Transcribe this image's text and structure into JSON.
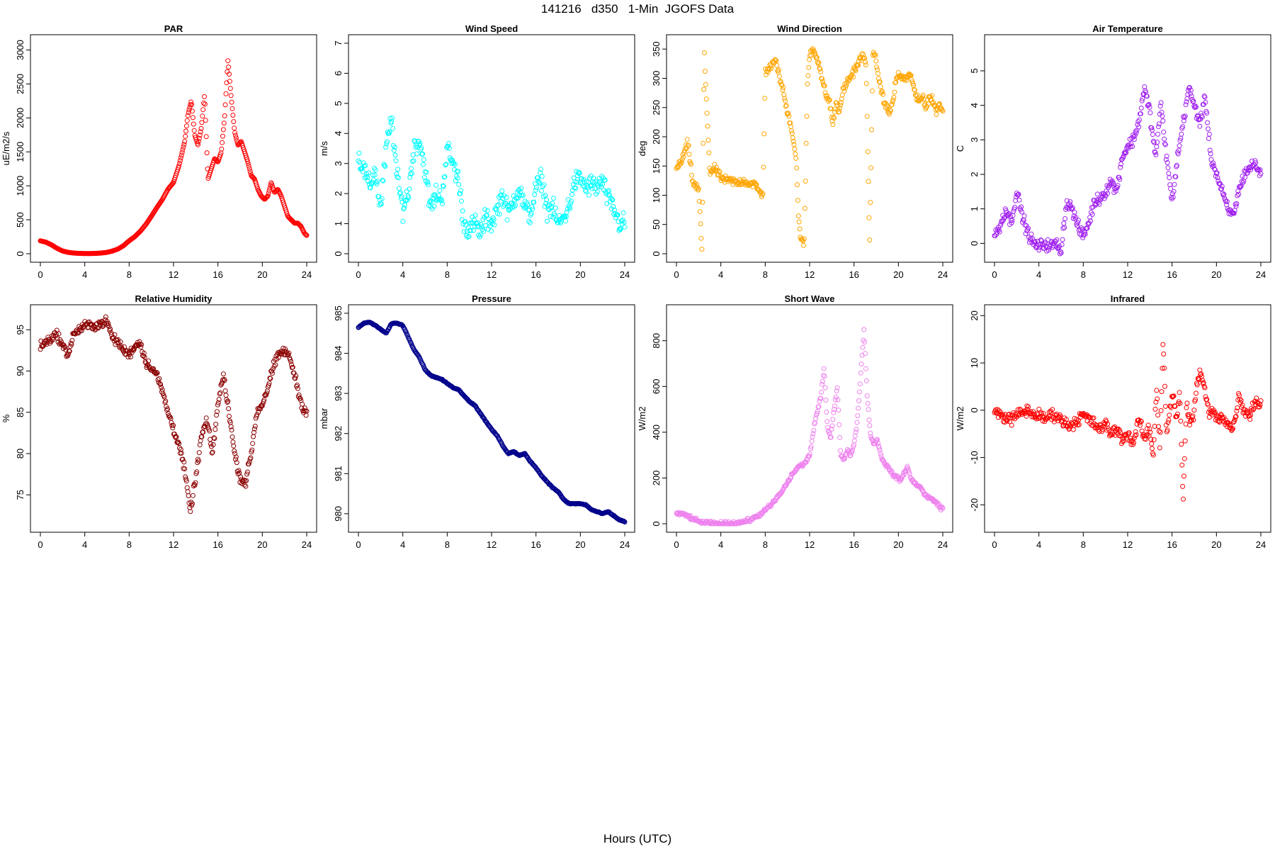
{
  "page": {
    "title": "141216   d350   1-Min  JGOFS Data",
    "xlabel": "Hours (UTC)"
  },
  "chart_data": [
    {
      "type": "scatter",
      "title": "PAR",
      "ylabel": "uE/m2/s",
      "xlabel": "",
      "color": "#ff0000",
      "xlim": [
        0,
        24
      ],
      "ylim": [
        0,
        3100
      ],
      "xticks": [
        0,
        4,
        8,
        12,
        16,
        20,
        24
      ],
      "yticks": [
        0,
        500,
        1000,
        1500,
        2000,
        2500,
        3000
      ],
      "jitter": 0.04,
      "x": [
        0,
        0.5,
        1,
        1.5,
        2,
        2.5,
        3,
        3.5,
        4,
        4.5,
        5,
        5.5,
        6,
        6.5,
        7,
        7.5,
        8,
        8.5,
        9,
        9.5,
        10,
        10.5,
        11,
        11.5,
        12,
        12.5,
        13,
        13.3,
        13.6,
        13.9,
        14.2,
        14.5,
        14.8,
        15.1,
        15.4,
        15.7,
        16,
        16.3,
        16.6,
        16.9,
        17.2,
        17.5,
        17.8,
        18.1,
        18.4,
        18.7,
        19,
        19.3,
        19.6,
        19.9,
        20.2,
        20.5,
        20.8,
        21.1,
        21.4,
        21.7,
        22,
        22.3,
        22.6,
        22.9,
        23.2,
        23.5,
        23.8,
        24
      ],
      "y": [
        190,
        170,
        130,
        80,
        40,
        20,
        10,
        5,
        3,
        3,
        5,
        10,
        20,
        40,
        70,
        120,
        190,
        250,
        330,
        430,
        550,
        680,
        800,
        950,
        1050,
        1300,
        1650,
        2050,
        2250,
        1750,
        1600,
        1850,
        2350,
        1100,
        1250,
        1400,
        1350,
        1500,
        2000,
        2850,
        2300,
        1800,
        1600,
        1650,
        1500,
        1350,
        1150,
        1100,
        950,
        850,
        800,
        850,
        1050,
        900,
        950,
        850,
        700,
        550,
        500,
        450,
        450,
        400,
        300,
        270
      ]
    },
    {
      "type": "scatter",
      "title": "Wind Speed",
      "ylabel": "m/s",
      "xlabel": "",
      "color": "#00ffff",
      "xlim": [
        0,
        24
      ],
      "ylim": [
        0,
        7
      ],
      "xticks": [
        0,
        4,
        8,
        12,
        16,
        20,
        24
      ],
      "yticks": [
        0,
        1,
        2,
        3,
        4,
        5,
        6,
        7
      ],
      "jitter": 0.5,
      "x": [
        0,
        0.5,
        1,
        1.5,
        2,
        2.5,
        3,
        3.5,
        4,
        4.5,
        5,
        5.5,
        6,
        6.5,
        7,
        7.5,
        8,
        8.5,
        9,
        9.5,
        10,
        10.5,
        11,
        11.5,
        12,
        12.5,
        13,
        13.5,
        14,
        14.5,
        15,
        15.5,
        16,
        16.5,
        17,
        17.5,
        18,
        18.5,
        19,
        19.5,
        20,
        20.5,
        21,
        21.5,
        22,
        22.5,
        23,
        23.5,
        24
      ],
      "y": [
        3.2,
        2.8,
        2.2,
        2.8,
        1.5,
        3.5,
        4.5,
        2.5,
        1.5,
        2.0,
        3.5,
        3.8,
        2.8,
        1.5,
        2.0,
        1.8,
        3.5,
        3.0,
        2.5,
        1.0,
        0.8,
        1.0,
        0.7,
        1.2,
        1.0,
        1.5,
        2.0,
        1.3,
        1.8,
        2.2,
        1.5,
        1.3,
        2.2,
        2.5,
        1.5,
        1.5,
        1.0,
        1.2,
        1.6,
        2.4,
        2.5,
        2.2,
        2.3,
        2.2,
        2.4,
        1.8,
        1.5,
        1.0,
        1.0
      ]
    },
    {
      "type": "scatter",
      "title": "Wind Direction",
      "ylabel": "deg",
      "xlabel": "",
      "color": "#ffa500",
      "xlim": [
        0,
        24
      ],
      "ylim": [
        0,
        360
      ],
      "xticks": [
        0,
        4,
        8,
        12,
        16,
        20,
        24
      ],
      "yticks": [
        0,
        50,
        100,
        150,
        200,
        250,
        300,
        350
      ],
      "jitter": 10,
      "x": [
        0,
        0.5,
        1,
        1.5,
        2,
        2.3,
        2.5,
        3,
        3.5,
        4,
        4.5,
        5,
        5.5,
        6,
        6.5,
        7,
        7.5,
        7.8,
        8,
        8.5,
        9,
        9.3,
        9.6,
        9.9,
        10.2,
        10.5,
        10.8,
        11,
        11.2,
        11.5,
        11.8,
        12,
        12.3,
        12.6,
        12.9,
        13.2,
        13.5,
        13.8,
        14.1,
        14.4,
        14.7,
        15,
        15.3,
        15.6,
        15.9,
        16.2,
        16.5,
        16.8,
        17.1,
        17.4,
        17.7,
        18,
        18.3,
        18.6,
        18.9,
        19.2,
        19.5,
        19.8,
        20.1,
        20.4,
        20.7,
        21,
        21.3,
        21.6,
        21.9,
        22.2,
        22.5,
        22.8,
        23.1,
        23.4,
        23.7,
        24
      ],
      "y": [
        145,
        160,
        190,
        120,
        110,
        5,
        345,
        140,
        145,
        130,
        125,
        125,
        120,
        125,
        120,
        120,
        105,
        100,
        310,
        320,
        330,
        300,
        280,
        250,
        230,
        200,
        160,
        60,
        30,
        10,
        290,
        340,
        350,
        340,
        320,
        290,
        270,
        260,
        220,
        260,
        240,
        280,
        290,
        300,
        310,
        320,
        330,
        340,
        320,
        15,
        340,
        330,
        290,
        270,
        250,
        240,
        260,
        300,
        305,
        300,
        300,
        305,
        295,
        265,
        260,
        270,
        250,
        270,
        260,
        245,
        255,
        245
      ]
    },
    {
      "type": "scatter",
      "title": "Air Temperature",
      "ylabel": "C",
      "xlabel": "",
      "color": "#a020f0",
      "xlim": [
        0,
        24
      ],
      "ylim": [
        -0.3,
        5.8
      ],
      "xticks": [
        0,
        4,
        8,
        12,
        16,
        20,
        24
      ],
      "yticks": [
        0,
        1,
        2,
        3,
        4,
        5
      ],
      "jitter": 0.25,
      "x": [
        0,
        0.5,
        1,
        1.5,
        2,
        2.5,
        3,
        3.5,
        4,
        4.5,
        5,
        5.5,
        6,
        6.5,
        7,
        7.5,
        8,
        8.5,
        9,
        9.5,
        10,
        10.5,
        11,
        11.5,
        12,
        12.5,
        13,
        13.5,
        14,
        14.5,
        15,
        15.5,
        16,
        16.5,
        17,
        17.5,
        18,
        18.5,
        19,
        19.5,
        20,
        20.5,
        21,
        21.5,
        22,
        22.5,
        23,
        23.5,
        24
      ],
      "y": [
        0.2,
        0.5,
        1.0,
        0.6,
        1.5,
        0.8,
        0.3,
        0.0,
        -0.1,
        0.0,
        -0.1,
        0.0,
        -0.2,
        1.2,
        1.0,
        0.5,
        0.2,
        0.6,
        1.2,
        1.3,
        1.5,
        1.8,
        1.5,
        2.5,
        2.8,
        3.0,
        3.5,
        4.5,
        3.8,
        2.5,
        4.0,
        2.5,
        1.2,
        2.5,
        3.5,
        4.5,
        4.0,
        3.5,
        4.2,
        2.5,
        2.0,
        1.5,
        1.0,
        0.8,
        1.5,
        2.0,
        2.2,
        2.3,
        2.0
      ]
    },
    {
      "type": "scatter",
      "title": "Relative Humidity",
      "ylabel": "%",
      "xlabel": "",
      "color": "#8b0000",
      "xlim": [
        0,
        24
      ],
      "ylim": [
        71.5,
        97
      ],
      "xticks": [
        0,
        4,
        8,
        12,
        16,
        20,
        24
      ],
      "yticks": [
        75,
        80,
        85,
        90,
        95
      ],
      "jitter": 0.8,
      "x": [
        0,
        0.5,
        1,
        1.5,
        2,
        2.5,
        3,
        3.5,
        4,
        4.5,
        5,
        5.5,
        6,
        6.5,
        7,
        7.5,
        8,
        8.5,
        9,
        9.5,
        10,
        10.5,
        11,
        11.5,
        12,
        12.5,
        13,
        13.5,
        14,
        14.5,
        15,
        15.5,
        16,
        16.5,
        17,
        17.5,
        18,
        18.5,
        19,
        19.5,
        20,
        20.5,
        21,
        21.5,
        22,
        22.5,
        23,
        23.5,
        24
      ],
      "y": [
        93,
        93.5,
        94,
        94.5,
        93,
        92,
        94.5,
        95,
        95.5,
        95.5,
        95.5,
        95.8,
        96,
        94,
        93.5,
        92.5,
        92,
        93,
        93.5,
        91,
        90.5,
        89.5,
        87.5,
        85,
        83,
        81,
        78,
        73,
        77,
        82,
        84,
        80,
        86,
        89.5,
        85,
        80,
        77,
        76.5,
        80,
        85,
        86,
        88,
        90.5,
        92,
        92.5,
        91.5,
        89,
        86,
        85
      ]
    },
    {
      "type": "scatter",
      "title": "Pressure",
      "ylabel": "mbar",
      "xlabel": "",
      "color": "#00008b",
      "xlim": [
        0,
        24
      ],
      "ylim": [
        979.75,
        985.0
      ],
      "xticks": [
        0,
        4,
        8,
        12,
        16,
        20,
        24
      ],
      "yticks": [
        980,
        981,
        982,
        983,
        984,
        985
      ],
      "jitter": 0.015,
      "x": [
        0,
        0.5,
        1,
        1.5,
        2,
        2.5,
        3,
        3.5,
        4,
        4.5,
        5,
        5.5,
        6,
        6.5,
        7,
        7.5,
        8,
        8.5,
        9,
        9.5,
        10,
        10.5,
        11,
        11.5,
        12,
        12.5,
        13,
        13.5,
        14,
        14.5,
        15,
        15.5,
        16,
        16.5,
        17,
        17.5,
        18,
        18.5,
        19,
        19.5,
        20,
        20.5,
        21,
        21.5,
        22,
        22.5,
        23,
        23.5,
        24
      ],
      "y": [
        984.65,
        984.75,
        984.78,
        984.7,
        984.6,
        984.5,
        984.75,
        984.75,
        984.7,
        984.4,
        984.1,
        983.9,
        983.6,
        983.45,
        983.4,
        983.35,
        983.25,
        983.15,
        983.1,
        982.95,
        982.8,
        982.7,
        982.5,
        982.3,
        982.1,
        981.95,
        981.7,
        981.5,
        981.55,
        981.45,
        981.5,
        981.3,
        981.15,
        980.95,
        980.8,
        980.65,
        980.55,
        980.35,
        980.25,
        980.25,
        980.25,
        980.22,
        980.1,
        980.05,
        980.0,
        980.05,
        979.95,
        979.85,
        979.8
      ]
    },
    {
      "type": "scatter",
      "title": "Short Wave",
      "ylabel": "W/m2",
      "xlabel": "",
      "color": "#ee82ee",
      "xlim": [
        0,
        24
      ],
      "ylim": [
        0,
        920
      ],
      "xticks": [
        0,
        4,
        8,
        12,
        16,
        20,
        24
      ],
      "yticks": [
        0,
        200,
        400,
        600,
        800
      ],
      "jitter": 12,
      "x": [
        0,
        0.5,
        1,
        1.5,
        2,
        2.5,
        3,
        3.5,
        4,
        4.5,
        5,
        5.5,
        6,
        6.5,
        7,
        7.5,
        8,
        8.5,
        9,
        9.5,
        10,
        10.5,
        11,
        11.5,
        12,
        12.5,
        13,
        13.3,
        13.6,
        13.9,
        14.2,
        14.5,
        14.8,
        15.1,
        15.4,
        15.7,
        16,
        16.3,
        16.6,
        16.9,
        17.2,
        17.5,
        17.8,
        18.1,
        18.4,
        18.7,
        19,
        19.3,
        19.6,
        19.9,
        20.2,
        20.5,
        20.8,
        21.1,
        21.4,
        21.7,
        22,
        22.3,
        22.6,
        22.9,
        23.2,
        23.5,
        23.8,
        24
      ],
      "y": [
        45,
        42,
        35,
        20,
        10,
        5,
        2,
        1,
        1,
        1,
        2,
        5,
        8,
        15,
        25,
        40,
        60,
        80,
        110,
        140,
        180,
        220,
        250,
        260,
        300,
        450,
        550,
        680,
        420,
        380,
        500,
        600,
        300,
        280,
        320,
        300,
        350,
        450,
        650,
        850,
        550,
        380,
        350,
        370,
        300,
        270,
        250,
        230,
        210,
        200,
        190,
        220,
        250,
        200,
        180,
        170,
        160,
        130,
        120,
        110,
        100,
        90,
        70,
        65
      ]
    },
    {
      "type": "scatter",
      "title": "Infrared",
      "ylabel": "W/m2",
      "xlabel": "",
      "color": "#ff0000",
      "xlim": [
        0,
        24
      ],
      "ylim": [
        -24,
        20.5
      ],
      "xticks": [
        0,
        4,
        8,
        12,
        16,
        20,
        24
      ],
      "yticks": [
        -20,
        -10,
        0,
        10,
        20
      ],
      "jitter": 1.8,
      "x": [
        0,
        0.5,
        1,
        1.5,
        2,
        2.5,
        3,
        3.5,
        4,
        4.5,
        5,
        5.5,
        6,
        6.5,
        7,
        7.5,
        8,
        8.5,
        9,
        9.5,
        10,
        10.5,
        11,
        11.5,
        12,
        12.5,
        13,
        13.5,
        14,
        14.3,
        14.6,
        14.9,
        15.2,
        15.5,
        15.8,
        16.1,
        16.4,
        16.7,
        17,
        17.3,
        17.6,
        17.9,
        18.2,
        18.5,
        18.8,
        19.1,
        19.4,
        19.7,
        20,
        20.5,
        21,
        21.5,
        22,
        22.5,
        23,
        23.5,
        24
      ],
      "y": [
        0,
        -1,
        -1.5,
        -2,
        -1,
        -0.5,
        0,
        -1,
        -1,
        -2,
        -1,
        -1,
        -2,
        -3,
        -3,
        -2,
        -1,
        -2,
        -3,
        -4,
        -3,
        -5,
        -4,
        -6,
        -5,
        -7,
        -2,
        -6,
        -4,
        -10,
        5,
        -8,
        15,
        -5,
        0,
        3,
        -2,
        4,
        -20,
        2,
        -3,
        -2,
        5,
        8,
        6,
        2,
        -1,
        0,
        -2,
        -1,
        -3,
        -4,
        3,
        0,
        -1,
        2,
        1
      ]
    }
  ]
}
